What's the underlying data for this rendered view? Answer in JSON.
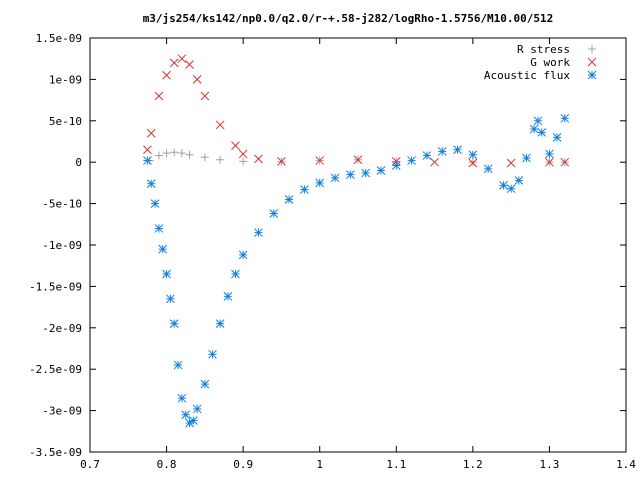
{
  "chart_data": {
    "type": "scatter",
    "title": "m3/js254/ks142/np0.0/q2.0/r-+.58-j282/logRho-1.5756/M10.00/512",
    "xlabel": "",
    "ylabel": "",
    "xlim": [
      0.7,
      1.4
    ],
    "ylim": [
      -3.5e-09,
      1.5e-09
    ],
    "x_ticks": [
      "0.7",
      "0.8",
      "0.9",
      "1",
      "1.1",
      "1.2",
      "1.3",
      "1.4"
    ],
    "y_ticks": [
      "-3.5e-09",
      "-3e-09",
      "-2.5e-09",
      "-2e-09",
      "-1.5e-09",
      "-1e-09",
      "-5e-10",
      "0",
      "5e-10",
      "1e-09",
      "1.5e-09"
    ],
    "grid": false,
    "legend_position": "top-right",
    "series": [
      {
        "name": "R stress",
        "marker": "+",
        "color": "#a0a0a0",
        "x": [
          0.778,
          0.79,
          0.8,
          0.81,
          0.82,
          0.83,
          0.85,
          0.87,
          0.9,
          0.95,
          1.0,
          1.05,
          1.1,
          1.2,
          1.3,
          1.32
        ],
        "y": [
          2e-11,
          8e-11,
          1.1e-10,
          1.2e-10,
          1.1e-10,
          9e-11,
          6e-11,
          3e-11,
          1e-11,
          5e-12,
          2e-11,
          3e-11,
          1e-11,
          0.0,
          0.0,
          0.0
        ]
      },
      {
        "name": "G work",
        "marker": "x",
        "color": "#e03030",
        "x": [
          0.775,
          0.78,
          0.79,
          0.8,
          0.81,
          0.82,
          0.83,
          0.84,
          0.85,
          0.87,
          0.89,
          0.9,
          0.92,
          0.95,
          1.0,
          1.05,
          1.1,
          1.15,
          1.2,
          1.25,
          1.3,
          1.32
        ],
        "y": [
          1.5e-10,
          3.5e-10,
          8e-10,
          1.05e-09,
          1.2e-09,
          1.25e-09,
          1.18e-09,
          1e-09,
          8e-10,
          4.5e-10,
          2e-10,
          1e-10,
          4e-11,
          1e-11,
          2e-11,
          3e-11,
          1e-11,
          0.0,
          -1e-11,
          -1e-11,
          0.0,
          0.0
        ]
      },
      {
        "name": "Acoustic flux",
        "marker": "*",
        "color": "#1080e0",
        "x": [
          0.775,
          0.78,
          0.785,
          0.79,
          0.795,
          0.8,
          0.805,
          0.81,
          0.815,
          0.82,
          0.825,
          0.83,
          0.835,
          0.84,
          0.85,
          0.86,
          0.87,
          0.88,
          0.89,
          0.9,
          0.92,
          0.94,
          0.96,
          0.98,
          1.0,
          1.02,
          1.04,
          1.06,
          1.08,
          1.1,
          1.12,
          1.14,
          1.16,
          1.18,
          1.2,
          1.22,
          1.24,
          1.25,
          1.26,
          1.27,
          1.28,
          1.285,
          1.29,
          1.3,
          1.31,
          1.32
        ],
        "y": [
          2e-11,
          -2.6e-10,
          -5e-10,
          -8e-10,
          -1.05e-09,
          -1.35e-09,
          -1.65e-09,
          -1.95e-09,
          -2.45e-09,
          -2.85e-09,
          -3.05e-09,
          -3.15e-09,
          -3.12e-09,
          -2.98e-09,
          -2.68e-09,
          -2.32e-09,
          -1.95e-09,
          -1.62e-09,
          -1.35e-09,
          -1.12e-09,
          -8.5e-10,
          -6.2e-10,
          -4.5e-10,
          -3.3e-10,
          -2.5e-10,
          -1.9e-10,
          -1.5e-10,
          -1.3e-10,
          -1e-10,
          -4e-11,
          2e-11,
          8e-11,
          1.3e-10,
          1.5e-10,
          9e-11,
          -8e-11,
          -2.8e-10,
          -3.2e-10,
          -2.2e-10,
          5e-11,
          4e-10,
          5e-10,
          3.6e-10,
          1e-10,
          3e-10,
          5.3e-10
        ]
      }
    ]
  }
}
